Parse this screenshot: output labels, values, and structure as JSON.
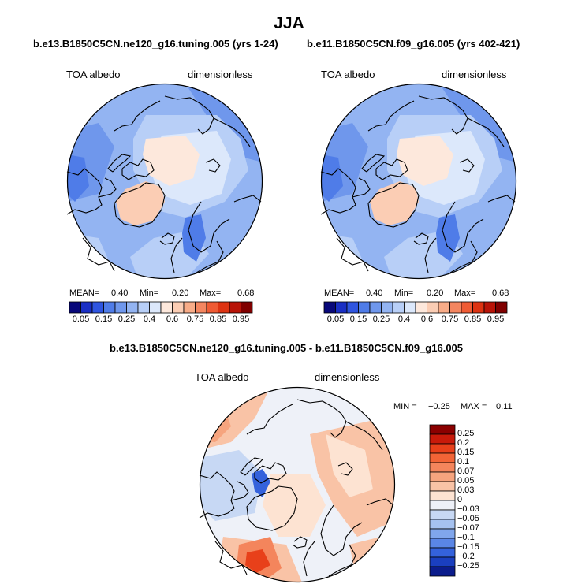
{
  "chart_data": [
    {
      "type": "heatmap",
      "title": "JJA",
      "subtitle": "b.e13.B1850C5CN.ne120_g16.tuning.005 (yrs 1-24)",
      "variable": "TOA albedo",
      "units": "dimensionless",
      "projection": "north polar stereographic",
      "stats": {
        "mean_label": "MEAN=",
        "mean": "0.40",
        "min_label": "Min=",
        "min": "0.20",
        "max_label": "Max=",
        "max": "0.68"
      },
      "colorbar": {
        "orientation": "horizontal",
        "levels": [
          "0.05",
          "0.15",
          "0.25",
          "0.4",
          "0.6",
          "0.75",
          "0.85",
          "0.95"
        ],
        "colors": [
          "#08087a",
          "#1a2fc4",
          "#2f55e0",
          "#4f7ce8",
          "#6f97ec",
          "#93b4f2",
          "#b8cff7",
          "#dce8fb",
          "#fde8dc",
          "#fbcdb4",
          "#f8ac88",
          "#f48660",
          "#ef5b34",
          "#dd3312",
          "#b81408",
          "#800000"
        ]
      }
    },
    {
      "type": "heatmap",
      "subtitle": "b.e11.B1850C5CN.f09_g16.005 (yrs 402-421)",
      "variable": "TOA albedo",
      "units": "dimensionless",
      "projection": "north polar stereographic",
      "stats": {
        "mean_label": "MEAN=",
        "mean": "0.40",
        "min_label": "Min=",
        "min": "0.20",
        "max_label": "Max=",
        "max": "0.68"
      },
      "colorbar": {
        "orientation": "horizontal",
        "levels": [
          "0.05",
          "0.15",
          "0.25",
          "0.4",
          "0.6",
          "0.75",
          "0.85",
          "0.95"
        ],
        "colors": [
          "#08087a",
          "#1a2fc4",
          "#2f55e0",
          "#4f7ce8",
          "#6f97ec",
          "#93b4f2",
          "#b8cff7",
          "#dce8fb",
          "#fde8dc",
          "#fbcdb4",
          "#f8ac88",
          "#f48660",
          "#ef5b34",
          "#dd3312",
          "#b81408",
          "#800000"
        ]
      }
    },
    {
      "type": "heatmap",
      "subtitle": "b.e13.B1850C5CN.ne120_g16.tuning.005 - b.e11.B1850C5CN.f09_g16.005",
      "variable": "TOA albedo",
      "units": "dimensionless",
      "projection": "north polar stereographic",
      "stats": {
        "min_label": "MIN =",
        "min": "−0.25",
        "max_label": "MAX =",
        "max": "0.11"
      },
      "colorbar": {
        "orientation": "vertical",
        "levels": [
          "0.25",
          "0.2",
          "0.15",
          "0.1",
          "0.07",
          "0.05",
          "0.03",
          "0",
          "−0.03",
          "−0.05",
          "−0.07",
          "−0.1",
          "−0.15",
          "−0.2",
          "−0.25"
        ],
        "colors": [
          "#8b0000",
          "#c81a0a",
          "#e8401a",
          "#f26436",
          "#f4855c",
          "#f6a47e",
          "#f9c3a6",
          "#fde3d2",
          "#eef1f8",
          "#c7d8f4",
          "#a6c2f0",
          "#80a6ec",
          "#5a86e6",
          "#3462dc",
          "#1a3fbf",
          "#0b1c8c"
        ]
      }
    }
  ]
}
